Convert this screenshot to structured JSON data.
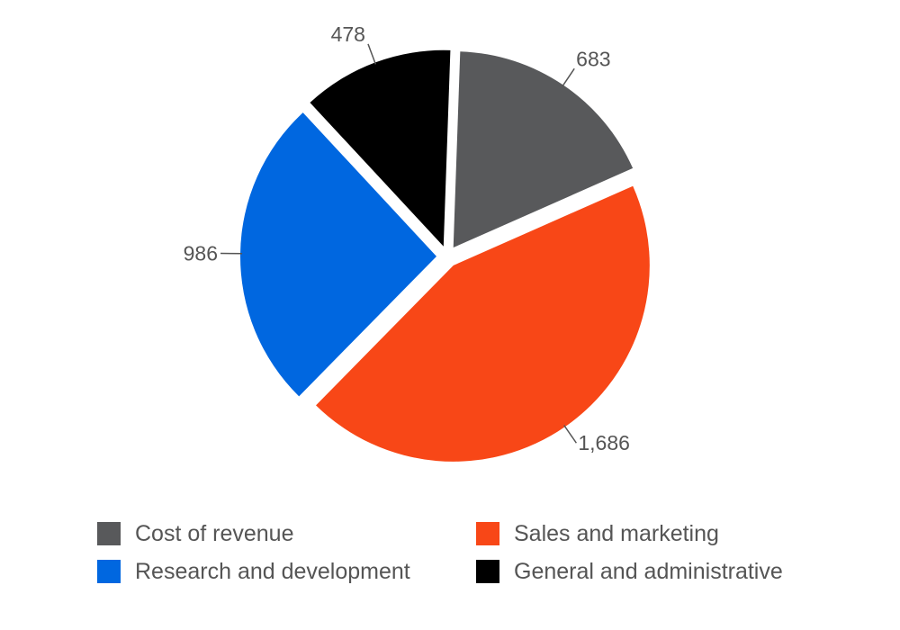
{
  "chart_data": {
    "type": "pie",
    "title": "",
    "slices": [
      {
        "name": "Cost of revenue",
        "value": 683,
        "label": "683",
        "color": "#58595b"
      },
      {
        "name": "Sales and marketing",
        "value": 1686,
        "label": "1,686",
        "color": "#f84717"
      },
      {
        "name": "Research and development",
        "value": 986,
        "label": "986",
        "color": "#0067e0"
      },
      {
        "name": "General and administrative",
        "value": 478,
        "label": "478",
        "color": "#000000"
      }
    ],
    "legend_position": "bottom",
    "exploded": true,
    "start_angle_deg": 2
  }
}
